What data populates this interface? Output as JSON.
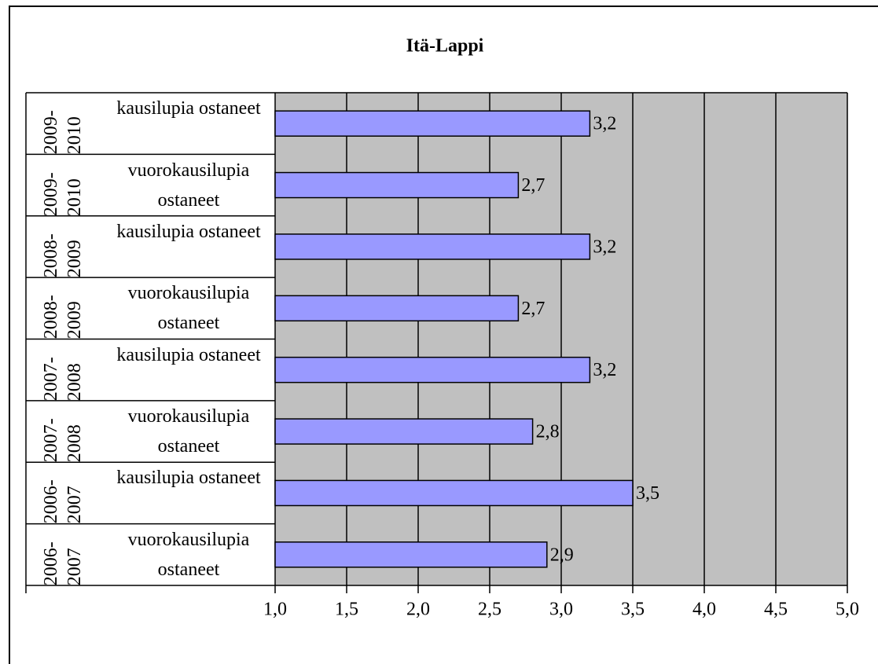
{
  "chart_data": {
    "type": "bar",
    "title": "Itä-Lappi",
    "categories": [
      {
        "period": "2009-2010",
        "group": "kausilupia ostaneet"
      },
      {
        "period": "2009-2010",
        "group": "vuorokausilupia ostaneet"
      },
      {
        "period": "2008-2009",
        "group": "kausilupia ostaneet"
      },
      {
        "period": "2008-2009",
        "group": "vuorokausilupia ostaneet"
      },
      {
        "period": "2007-2008",
        "group": "kausilupia ostaneet"
      },
      {
        "period": "2007-2008",
        "group": "vuorokausilupia ostaneet"
      },
      {
        "period": "2006-2007",
        "group": "kausilupia ostaneet"
      },
      {
        "period": "2006-2007",
        "group": "vuorokausilupia ostaneet"
      }
    ],
    "values": [
      3.2,
      2.7,
      3.2,
      2.7,
      3.2,
      2.8,
      3.5,
      2.9
    ],
    "value_labels": [
      "3,2",
      "2,7",
      "3,2",
      "2,7",
      "3,2",
      "2,8",
      "3,5",
      "2,9"
    ],
    "color": "#9999ff",
    "plot_background": "#c0c0c0",
    "xlim": [
      1,
      5
    ],
    "xticks": [
      {
        "value": 1,
        "label": "1,0"
      },
      {
        "value": 1.5,
        "label": "1,5"
      },
      {
        "value": 2,
        "label": "2,0"
      },
      {
        "value": 2.5,
        "label": "2,5"
      },
      {
        "value": 3,
        "label": "3,0"
      },
      {
        "value": 3.5,
        "label": "3,5"
      },
      {
        "value": 4,
        "label": "4,0"
      },
      {
        "value": 4.5,
        "label": "4,5"
      },
      {
        "value": 5,
        "label": "5,0"
      }
    ],
    "grid": true
  }
}
